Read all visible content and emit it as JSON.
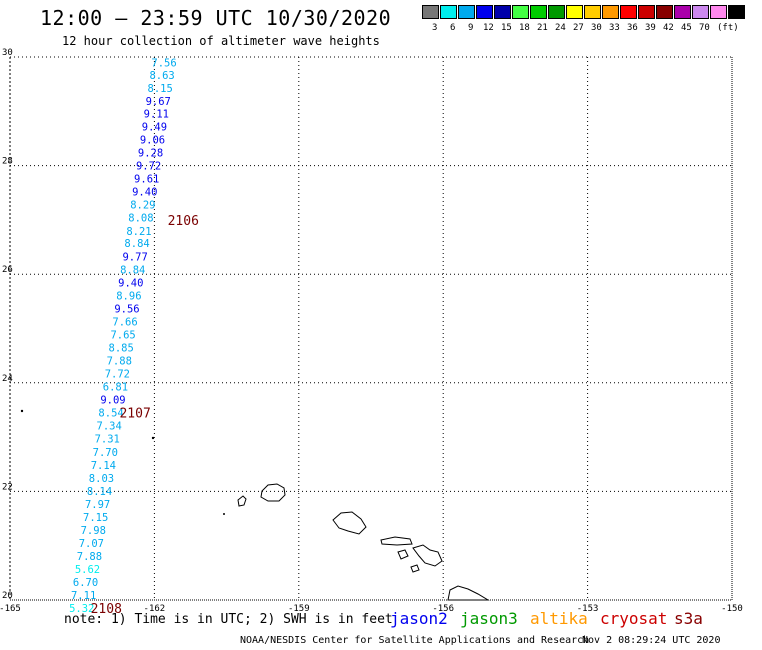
{
  "header": {
    "title": "12:00 — 23:59 UTC 10/30/2020",
    "subtitle": "12 hour collection of altimeter wave heights"
  },
  "color_scale": {
    "colors": [
      "#777777",
      "#00eeee",
      "#00aaee",
      "#0000ee",
      "#0000aa",
      "#44ff44",
      "#00cc00",
      "#009900",
      "#ffff00",
      "#ffcc00",
      "#ff9900",
      "#ff0000",
      "#cc0000",
      "#880000",
      "#aa00aa",
      "#cc88ee",
      "#ff88ee",
      "#000000"
    ],
    "labels": [
      "3",
      "6",
      "9",
      "12",
      "15",
      "18",
      "21",
      "24",
      "27",
      "30",
      "33",
      "36",
      "39",
      "42",
      "45",
      "70",
      "(ft)"
    ]
  },
  "map": {
    "lon_ticks": [
      "-165",
      "-162",
      "-159",
      "-156",
      "-153",
      "-150"
    ],
    "lat_ticks": [
      "30",
      "28",
      "26",
      "24",
      "22",
      "20"
    ],
    "lon_range": [
      -165,
      -150
    ],
    "lat_range": [
      20,
      30
    ],
    "swh_values": [
      {
        "v": "7.56",
        "lon": -161.8,
        "lat": 29.9,
        "c": "#00aaee"
      },
      {
        "v": "8.63",
        "lon": -161.84,
        "lat": 29.67,
        "c": "#00aaee"
      },
      {
        "v": "8.15",
        "lon": -161.88,
        "lat": 29.43,
        "c": "#00aaee"
      },
      {
        "v": "9.67",
        "lon": -161.92,
        "lat": 29.19,
        "c": "#0000ee"
      },
      {
        "v": "9.11",
        "lon": -161.96,
        "lat": 28.96,
        "c": "#0000ee"
      },
      {
        "v": "9.49",
        "lon": -162.0,
        "lat": 28.72,
        "c": "#0000ee"
      },
      {
        "v": "9.06",
        "lon": -162.04,
        "lat": 28.48,
        "c": "#0000ee"
      },
      {
        "v": "9.28",
        "lon": -162.08,
        "lat": 28.24,
        "c": "#0000ee"
      },
      {
        "v": "9.72",
        "lon": -162.12,
        "lat": 28.0,
        "c": "#0000ee"
      },
      {
        "v": "9.61",
        "lon": -162.16,
        "lat": 27.76,
        "c": "#0000ee"
      },
      {
        "v": "9.40",
        "lon": -162.2,
        "lat": 27.52,
        "c": "#0000ee"
      },
      {
        "v": "8.29",
        "lon": -162.24,
        "lat": 27.28,
        "c": "#00aaee"
      },
      {
        "v": "8.08",
        "lon": -162.28,
        "lat": 27.04,
        "c": "#00aaee"
      },
      {
        "v": "8.21",
        "lon": -162.32,
        "lat": 26.8,
        "c": "#00aaee"
      },
      {
        "v": "8.84",
        "lon": -162.36,
        "lat": 26.57,
        "c": "#00aaee"
      },
      {
        "v": "9.77",
        "lon": -162.4,
        "lat": 26.33,
        "c": "#0000ee"
      },
      {
        "v": "8.84",
        "lon": -162.45,
        "lat": 26.09,
        "c": "#00aaee"
      },
      {
        "v": "9.40",
        "lon": -162.49,
        "lat": 25.85,
        "c": "#0000ee"
      },
      {
        "v": "8.96",
        "lon": -162.53,
        "lat": 25.61,
        "c": "#00aaee"
      },
      {
        "v": "9.56",
        "lon": -162.57,
        "lat": 25.37,
        "c": "#0000ee"
      },
      {
        "v": "7.66",
        "lon": -162.61,
        "lat": 25.13,
        "c": "#00aaee"
      },
      {
        "v": "7.65",
        "lon": -162.65,
        "lat": 24.89,
        "c": "#00aaee"
      },
      {
        "v": "8.85",
        "lon": -162.69,
        "lat": 24.65,
        "c": "#00aaee"
      },
      {
        "v": "7.88",
        "lon": -162.73,
        "lat": 24.41,
        "c": "#00aaee"
      },
      {
        "v": "7.72",
        "lon": -162.77,
        "lat": 24.17,
        "c": "#00aaee"
      },
      {
        "v": "6.81",
        "lon": -162.81,
        "lat": 23.93,
        "c": "#00aaee"
      },
      {
        "v": "9.09",
        "lon": -162.86,
        "lat": 23.69,
        "c": "#0000ee"
      },
      {
        "v": "8.54",
        "lon": -162.9,
        "lat": 23.45,
        "c": "#00aaee"
      },
      {
        "v": "7.34",
        "lon": -162.94,
        "lat": 23.21,
        "c": "#00aaee"
      },
      {
        "v": "7.31",
        "lon": -162.98,
        "lat": 22.97,
        "c": "#00aaee"
      },
      {
        "v": "7.70",
        "lon": -163.02,
        "lat": 22.73,
        "c": "#00aaee"
      },
      {
        "v": "7.14",
        "lon": -163.06,
        "lat": 22.49,
        "c": "#00aaee"
      },
      {
        "v": "8.03",
        "lon": -163.1,
        "lat": 22.25,
        "c": "#00aaee"
      },
      {
        "v": "8.14",
        "lon": -163.14,
        "lat": 22.01,
        "c": "#00aaee"
      },
      {
        "v": "7.97",
        "lon": -163.18,
        "lat": 21.77,
        "c": "#00aaee"
      },
      {
        "v": "7.15",
        "lon": -163.22,
        "lat": 21.53,
        "c": "#00aaee"
      },
      {
        "v": "7.98",
        "lon": -163.27,
        "lat": 21.29,
        "c": "#00aaee"
      },
      {
        "v": "7.07",
        "lon": -163.31,
        "lat": 21.05,
        "c": "#00aaee"
      },
      {
        "v": "7.88",
        "lon": -163.35,
        "lat": 20.81,
        "c": "#00aaee"
      },
      {
        "v": "5.62",
        "lon": -163.39,
        "lat": 20.57,
        "c": "#00eeee"
      },
      {
        "v": "6.70",
        "lon": -163.43,
        "lat": 20.33,
        "c": "#00aaee"
      },
      {
        "v": "7.11",
        "lon": -163.47,
        "lat": 20.09,
        "c": "#00aaee"
      },
      {
        "v": "5.32",
        "lon": -163.51,
        "lat": 19.85,
        "c": "#00eeee"
      }
    ],
    "pass_labels": [
      {
        "v": "2106",
        "lon": -161.4,
        "lat": 27.0
      },
      {
        "v": "2107",
        "lon": -162.4,
        "lat": 23.45
      },
      {
        "v": "2108",
        "lon": -163.0,
        "lat": 19.85
      }
    ]
  },
  "footer": {
    "note": "note: 1) Time is in UTC; 2) SWH is in feet",
    "satellites": [
      {
        "name": "jason2",
        "color": "#0000ee"
      },
      {
        "name": "jason3",
        "color": "#009900"
      },
      {
        "name": "altika",
        "color": "#ff9900"
      },
      {
        "name": "cryosat",
        "color": "#cc0000"
      },
      {
        "name": "s3a",
        "color": "#880000"
      }
    ],
    "credit": "NOAA/NESDIS Center for Satellite Applications and Research",
    "timestamp": "Nov  2 08:29:24 UTC 2020"
  }
}
